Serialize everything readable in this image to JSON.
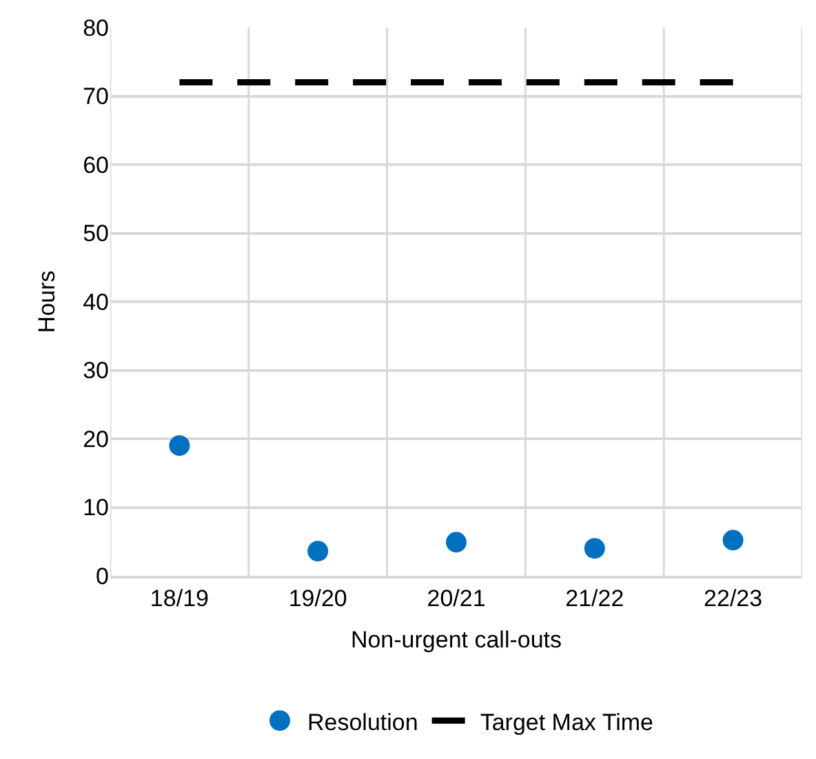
{
  "chart_data": {
    "type": "scatter",
    "xlabel": "Non-urgent call-outs",
    "ylabel": "Hours",
    "categories": [
      "18/19",
      "19/20",
      "20/21",
      "21/22",
      "22/23"
    ],
    "series": [
      {
        "name": "Resolution",
        "color": "#0070c0",
        "marker": "circle",
        "values": [
          19,
          3.6,
          4.9,
          4.0,
          5.2
        ]
      },
      {
        "name": "Target Max Time",
        "type": "line",
        "color": "#000000",
        "line_style": "dashed",
        "marker": "none",
        "values": [
          72,
          72,
          72,
          72,
          72
        ]
      }
    ],
    "ylim": [
      0,
      80
    ],
    "yticks": [
      0,
      10,
      20,
      30,
      40,
      50,
      60,
      70,
      80
    ],
    "grid": true,
    "legend": "bottom"
  }
}
